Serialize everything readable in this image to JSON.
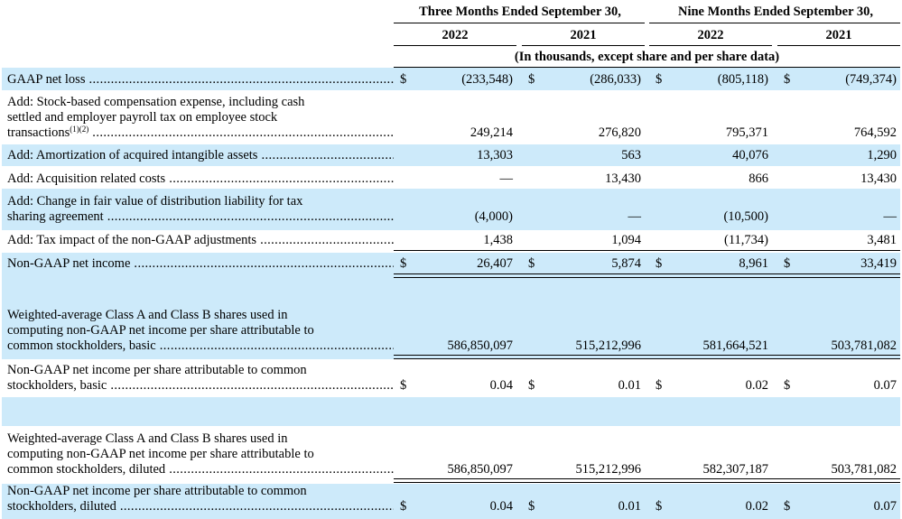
{
  "header": {
    "period_three": "Three Months Ended September 30,",
    "period_nine": "Nine Months Ended September 30,",
    "years": [
      "2022",
      "2021",
      "2022",
      "2021"
    ],
    "units_note": "(In thousands, except share and per share data)"
  },
  "currency_symbol": "$",
  "rows": [
    {
      "label": [
        "GAAP net loss"
      ],
      "values": [
        "(233,548)",
        "(286,033)",
        "(805,118)",
        "(749,374)"
      ],
      "dollar": true
    },
    {
      "label": [
        "Add: Stock-based compensation expense, including cash",
        "settled and employer payroll tax on employee stock",
        "transactions"
      ],
      "footnote": "(1)(2)",
      "values": [
        "249,214",
        "276,820",
        "795,371",
        "764,592"
      ],
      "dollar": false
    },
    {
      "label": [
        "Add: Amortization of acquired intangible assets"
      ],
      "values": [
        "13,303",
        "563",
        "40,076",
        "1,290"
      ],
      "dollar": false
    },
    {
      "label": [
        "Add: Acquisition related costs"
      ],
      "values": [
        "—",
        "13,430",
        "866",
        "13,430"
      ],
      "dollar": false
    },
    {
      "label": [
        "Add: Change in fair value of distribution liability for tax",
        "sharing agreement"
      ],
      "values": [
        "(4,000)",
        "—",
        "(10,500)",
        "—"
      ],
      "dollar": false
    },
    {
      "label": [
        "Add: Tax impact of the non-GAAP adjustments"
      ],
      "values": [
        "1,438",
        "1,094",
        "(11,734)",
        "3,481"
      ],
      "dollar": false
    },
    {
      "label": [
        "Non-GAAP net income"
      ],
      "values": [
        "26,407",
        "5,874",
        "8,961",
        "33,419"
      ],
      "dollar": true
    },
    {
      "label": [
        "Weighted-average Class A and Class B shares used in",
        "computing non-GAAP net income per share attributable to",
        "common stockholders, basic"
      ],
      "values": [
        "586,850,097",
        "515,212,996",
        "581,664,521",
        "503,781,082"
      ],
      "dollar": false
    },
    {
      "label": [
        "Non-GAAP net income per share attributable to common",
        "stockholders, basic"
      ],
      "values": [
        "0.04",
        "0.01",
        "0.02",
        "0.07"
      ],
      "dollar": true
    },
    {
      "label": [
        "Weighted-average Class A and Class B shares used in",
        "computing non-GAAP net income per share attributable to",
        "common stockholders, diluted"
      ],
      "values": [
        "586,850,097",
        "515,212,996",
        "582,307,187",
        "503,781,082"
      ],
      "dollar": false
    },
    {
      "label": [
        "Non-GAAP net income per share attributable to common",
        "stockholders, diluted"
      ],
      "values": [
        "0.04",
        "0.01",
        "0.02",
        "0.07"
      ],
      "dollar": true
    }
  ]
}
